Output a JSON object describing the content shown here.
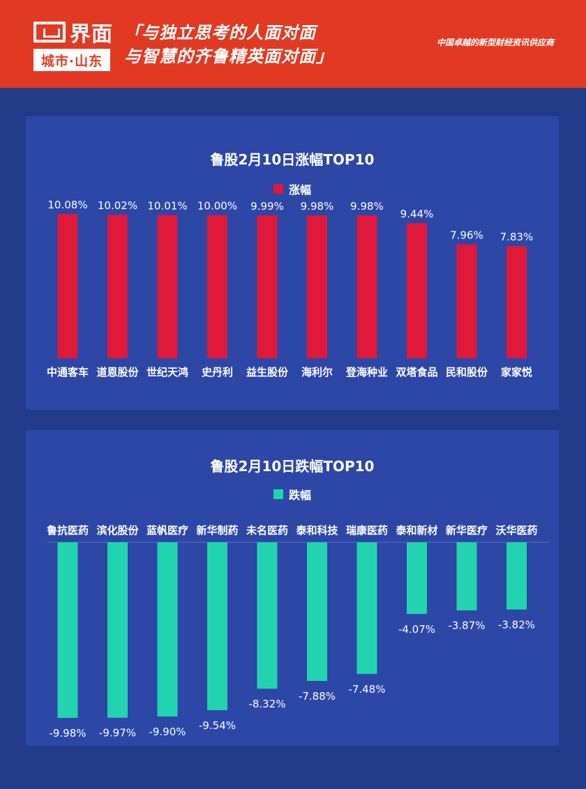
{
  "header": {
    "logo_text": "界面",
    "logo_sub": "城市·山东",
    "slogan_line1": "「与独立思考的人面对面",
    "slogan_line2": "与智慧的齐鲁精英面对面」",
    "tagline": "中国卓越的新型财经资讯供应商"
  },
  "colors": {
    "header_bg": "#e23a22",
    "page_bg": "#233a88",
    "panel_bg": "#2d47a6",
    "gain_bar": "#e0183a",
    "loss_bar": "#22d3b0"
  },
  "chart_data": [
    {
      "type": "bar",
      "title": "鲁股2月10日涨幅TOP10",
      "legend": "涨幅",
      "categories": [
        "中通客车",
        "道恩股份",
        "世纪天鸿",
        "史丹利",
        "益生股份",
        "海利尔",
        "登海种业",
        "双塔食品",
        "民和股份",
        "家家悦"
      ],
      "values": [
        10.08,
        10.02,
        10.01,
        10.0,
        9.99,
        9.98,
        9.98,
        9.44,
        7.96,
        7.83
      ],
      "labels": [
        "10.08%",
        "10.02%",
        "10.01%",
        "10.00%",
        "9.99%",
        "9.98%",
        "9.98%",
        "9.44%",
        "7.96%",
        "7.83%"
      ],
      "ylim": [
        0,
        10.08
      ]
    },
    {
      "type": "bar",
      "title": "鲁股2月10日跌幅TOP10",
      "legend": "跌幅",
      "categories": [
        "鲁抗医药",
        "滨化股份",
        "蓝帆医疗",
        "新华制药",
        "未名医药",
        "泰和科技",
        "瑞康医药",
        "泰和新材",
        "新华医疗",
        "沃华医药"
      ],
      "values": [
        -9.98,
        -9.97,
        -9.9,
        -9.54,
        -8.32,
        -7.88,
        -7.48,
        -4.07,
        -3.87,
        -3.82
      ],
      "labels": [
        "-9.98%",
        "-9.97%",
        "-9.90%",
        "-9.54%",
        "-8.32%",
        "-7.88%",
        "-7.48%",
        "-4.07%",
        "-3.87%",
        "-3.82%"
      ],
      "ylim": [
        -9.98,
        0
      ]
    }
  ]
}
